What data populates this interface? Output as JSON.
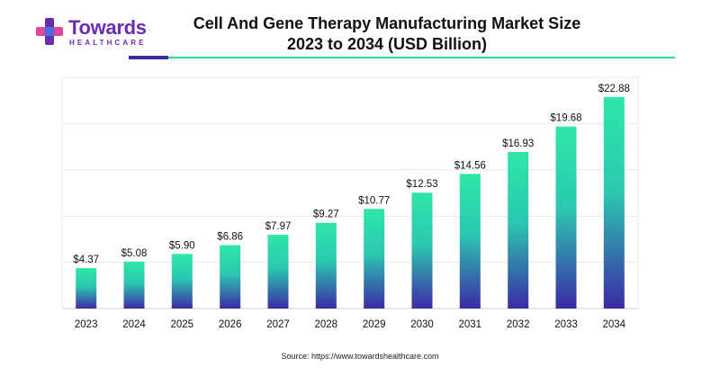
{
  "brand": {
    "name": "Towards",
    "sub": "HEALTHCARE",
    "colors": {
      "purple": "#6a2bb5",
      "pink": "#e0469a",
      "blue": "#4a6ee0"
    }
  },
  "header": {
    "title_line1": "Cell And Gene Therapy Manufacturing Market Size",
    "title_line2": "2023 to 2034 (USD Billion)"
  },
  "chart_data": {
    "type": "bar",
    "categories": [
      "2023",
      "2024",
      "2025",
      "2026",
      "2027",
      "2028",
      "2029",
      "2030",
      "2031",
      "2032",
      "2033",
      "2034"
    ],
    "values": [
      4.37,
      5.08,
      5.9,
      6.86,
      7.97,
      9.27,
      10.77,
      12.53,
      14.56,
      16.93,
      19.68,
      22.88
    ],
    "labels": [
      "$4.37",
      "$5.08",
      "$5.90",
      "$6.86",
      "$7.97",
      "$9.27",
      "$10.77",
      "$12.53",
      "$14.56",
      "$16.93",
      "$19.68",
      "$22.88"
    ],
    "ylim": [
      0,
      25
    ],
    "grid": true,
    "legend": "none",
    "colors": {
      "bar_top": "#2ee6a8",
      "bar_bottom": "#3b2aa6",
      "grid": "#e9e9e9"
    }
  },
  "footer": {
    "source": "Source: https://www.towardshealthcare.com"
  }
}
